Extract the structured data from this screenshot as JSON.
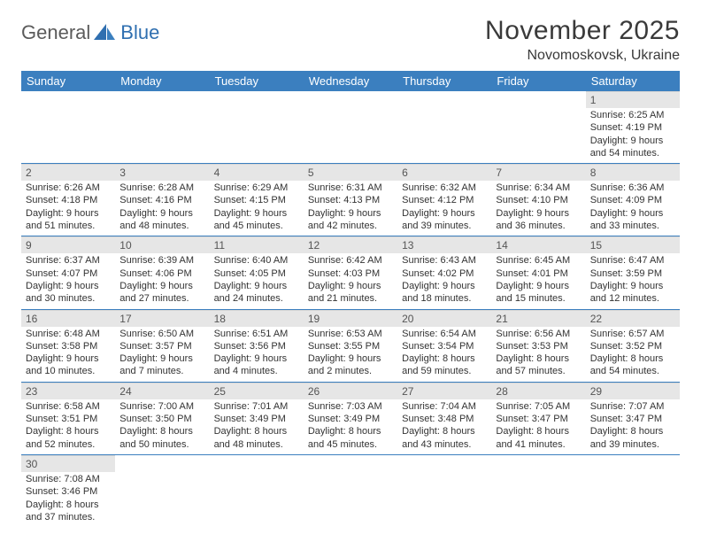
{
  "brand": {
    "general": "General",
    "blue": "Blue"
  },
  "title": "November 2025",
  "location": "Novomoskovsk, Ukraine",
  "colors": {
    "header_bg": "#3b7fbf",
    "header_text": "#ffffff",
    "daynum_bg": "#e6e6e6",
    "row_divider": "#3b7fbf",
    "logo_gray": "#5b5b5b",
    "logo_blue": "#2f6fb0"
  },
  "weekdays": [
    "Sunday",
    "Monday",
    "Tuesday",
    "Wednesday",
    "Thursday",
    "Friday",
    "Saturday"
  ],
  "leading_blanks": 6,
  "days": [
    {
      "n": "1",
      "sunrise": "Sunrise: 6:25 AM",
      "sunset": "Sunset: 4:19 PM",
      "daylight": "Daylight: 9 hours and 54 minutes."
    },
    {
      "n": "2",
      "sunrise": "Sunrise: 6:26 AM",
      "sunset": "Sunset: 4:18 PM",
      "daylight": "Daylight: 9 hours and 51 minutes."
    },
    {
      "n": "3",
      "sunrise": "Sunrise: 6:28 AM",
      "sunset": "Sunset: 4:16 PM",
      "daylight": "Daylight: 9 hours and 48 minutes."
    },
    {
      "n": "4",
      "sunrise": "Sunrise: 6:29 AM",
      "sunset": "Sunset: 4:15 PM",
      "daylight": "Daylight: 9 hours and 45 minutes."
    },
    {
      "n": "5",
      "sunrise": "Sunrise: 6:31 AM",
      "sunset": "Sunset: 4:13 PM",
      "daylight": "Daylight: 9 hours and 42 minutes."
    },
    {
      "n": "6",
      "sunrise": "Sunrise: 6:32 AM",
      "sunset": "Sunset: 4:12 PM",
      "daylight": "Daylight: 9 hours and 39 minutes."
    },
    {
      "n": "7",
      "sunrise": "Sunrise: 6:34 AM",
      "sunset": "Sunset: 4:10 PM",
      "daylight": "Daylight: 9 hours and 36 minutes."
    },
    {
      "n": "8",
      "sunrise": "Sunrise: 6:36 AM",
      "sunset": "Sunset: 4:09 PM",
      "daylight": "Daylight: 9 hours and 33 minutes."
    },
    {
      "n": "9",
      "sunrise": "Sunrise: 6:37 AM",
      "sunset": "Sunset: 4:07 PM",
      "daylight": "Daylight: 9 hours and 30 minutes."
    },
    {
      "n": "10",
      "sunrise": "Sunrise: 6:39 AM",
      "sunset": "Sunset: 4:06 PM",
      "daylight": "Daylight: 9 hours and 27 minutes."
    },
    {
      "n": "11",
      "sunrise": "Sunrise: 6:40 AM",
      "sunset": "Sunset: 4:05 PM",
      "daylight": "Daylight: 9 hours and 24 minutes."
    },
    {
      "n": "12",
      "sunrise": "Sunrise: 6:42 AM",
      "sunset": "Sunset: 4:03 PM",
      "daylight": "Daylight: 9 hours and 21 minutes."
    },
    {
      "n": "13",
      "sunrise": "Sunrise: 6:43 AM",
      "sunset": "Sunset: 4:02 PM",
      "daylight": "Daylight: 9 hours and 18 minutes."
    },
    {
      "n": "14",
      "sunrise": "Sunrise: 6:45 AM",
      "sunset": "Sunset: 4:01 PM",
      "daylight": "Daylight: 9 hours and 15 minutes."
    },
    {
      "n": "15",
      "sunrise": "Sunrise: 6:47 AM",
      "sunset": "Sunset: 3:59 PM",
      "daylight": "Daylight: 9 hours and 12 minutes."
    },
    {
      "n": "16",
      "sunrise": "Sunrise: 6:48 AM",
      "sunset": "Sunset: 3:58 PM",
      "daylight": "Daylight: 9 hours and 10 minutes."
    },
    {
      "n": "17",
      "sunrise": "Sunrise: 6:50 AM",
      "sunset": "Sunset: 3:57 PM",
      "daylight": "Daylight: 9 hours and 7 minutes."
    },
    {
      "n": "18",
      "sunrise": "Sunrise: 6:51 AM",
      "sunset": "Sunset: 3:56 PM",
      "daylight": "Daylight: 9 hours and 4 minutes."
    },
    {
      "n": "19",
      "sunrise": "Sunrise: 6:53 AM",
      "sunset": "Sunset: 3:55 PM",
      "daylight": "Daylight: 9 hours and 2 minutes."
    },
    {
      "n": "20",
      "sunrise": "Sunrise: 6:54 AM",
      "sunset": "Sunset: 3:54 PM",
      "daylight": "Daylight: 8 hours and 59 minutes."
    },
    {
      "n": "21",
      "sunrise": "Sunrise: 6:56 AM",
      "sunset": "Sunset: 3:53 PM",
      "daylight": "Daylight: 8 hours and 57 minutes."
    },
    {
      "n": "22",
      "sunrise": "Sunrise: 6:57 AM",
      "sunset": "Sunset: 3:52 PM",
      "daylight": "Daylight: 8 hours and 54 minutes."
    },
    {
      "n": "23",
      "sunrise": "Sunrise: 6:58 AM",
      "sunset": "Sunset: 3:51 PM",
      "daylight": "Daylight: 8 hours and 52 minutes."
    },
    {
      "n": "24",
      "sunrise": "Sunrise: 7:00 AM",
      "sunset": "Sunset: 3:50 PM",
      "daylight": "Daylight: 8 hours and 50 minutes."
    },
    {
      "n": "25",
      "sunrise": "Sunrise: 7:01 AM",
      "sunset": "Sunset: 3:49 PM",
      "daylight": "Daylight: 8 hours and 48 minutes."
    },
    {
      "n": "26",
      "sunrise": "Sunrise: 7:03 AM",
      "sunset": "Sunset: 3:49 PM",
      "daylight": "Daylight: 8 hours and 45 minutes."
    },
    {
      "n": "27",
      "sunrise": "Sunrise: 7:04 AM",
      "sunset": "Sunset: 3:48 PM",
      "daylight": "Daylight: 8 hours and 43 minutes."
    },
    {
      "n": "28",
      "sunrise": "Sunrise: 7:05 AM",
      "sunset": "Sunset: 3:47 PM",
      "daylight": "Daylight: 8 hours and 41 minutes."
    },
    {
      "n": "29",
      "sunrise": "Sunrise: 7:07 AM",
      "sunset": "Sunset: 3:47 PM",
      "daylight": "Daylight: 8 hours and 39 minutes."
    },
    {
      "n": "30",
      "sunrise": "Sunrise: 7:08 AM",
      "sunset": "Sunset: 3:46 PM",
      "daylight": "Daylight: 8 hours and 37 minutes."
    }
  ]
}
